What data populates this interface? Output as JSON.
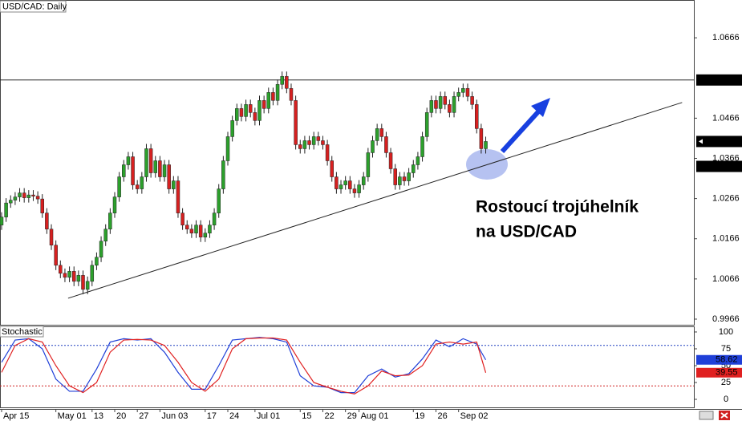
{
  "chart_data": {
    "type": "candlestick",
    "title": "USD/CAD: Daily",
    "up_color": "#2ca02c",
    "down_color": "#d62020",
    "open": [
      1.02,
      1.022,
      1.0255,
      1.0262,
      1.027,
      1.028,
      1.0268,
      1.0275,
      1.0272,
      1.0265,
      1.023,
      1.019,
      1.015,
      1.01,
      1.008,
      1.007,
      1.0085,
      1.006,
      1.0075,
      1.004,
      1.006,
      1.01,
      1.012,
      1.016,
      1.019,
      1.023,
      1.027,
      1.032,
      1.035,
      1.037,
      1.03,
      1.029,
      1.032,
      1.039,
      1.033,
      1.036,
      1.032,
      1.035,
      1.029,
      1.031,
      1.023,
      1.02,
      1.019,
      1.018,
      1.02,
      1.017,
      1.018,
      1.02,
      1.023,
      1.029,
      1.036,
      1.042,
      1.046,
      1.049,
      1.047,
      1.05,
      1.048,
      1.046,
      1.051,
      1.049,
      1.053,
      1.051,
      1.055,
      1.057,
      1.054,
      1.051,
      1.04,
      1.039,
      1.041,
      1.04,
      1.042,
      1.041,
      1.04,
      1.036,
      1.032,
      1.029,
      1.03,
      1.031,
      1.029,
      1.028,
      1.03,
      1.032,
      1.038,
      1.041,
      1.044,
      1.042,
      1.038,
      1.034,
      1.03,
      1.032,
      1.031,
      1.033,
      1.035,
      1.037,
      1.042,
      1.048,
      1.051,
      1.049,
      1.052,
      1.05,
      1.048,
      1.052,
      1.053,
      1.054,
      1.052,
      1.05,
      1.044,
      1.039
    ],
    "high": [
      1.0232,
      1.0267,
      1.0274,
      1.0282,
      1.0292,
      1.0292,
      1.0287,
      1.0287,
      1.0284,
      1.0277,
      1.0242,
      1.0202,
      1.0162,
      1.0112,
      1.0092,
      1.0097,
      1.0097,
      1.0087,
      1.0087,
      1.0072,
      1.0112,
      1.0132,
      1.0172,
      1.0202,
      1.0242,
      1.0282,
      1.0332,
      1.0362,
      1.0382,
      1.0382,
      1.0312,
      1.0332,
      1.0402,
      1.0402,
      1.0372,
      1.0372,
      1.0362,
      1.0362,
      1.0322,
      1.0322,
      1.0242,
      1.0212,
      1.0202,
      1.0212,
      1.0212,
      1.0192,
      1.0212,
      1.0242,
      1.0302,
      1.0372,
      1.0432,
      1.0472,
      1.0502,
      1.0502,
      1.0512,
      1.0512,
      1.0492,
      1.0522,
      1.0522,
      1.0542,
      1.0542,
      1.0562,
      1.0582,
      1.0582,
      1.0552,
      1.0522,
      1.0412,
      1.0422,
      1.0422,
      1.0432,
      1.0432,
      1.0422,
      1.0412,
      1.0372,
      1.0332,
      1.0312,
      1.0322,
      1.0322,
      1.0302,
      1.0312,
      1.0332,
      1.0392,
      1.0422,
      1.0452,
      1.0452,
      1.0432,
      1.0392,
      1.0352,
      1.0332,
      1.0332,
      1.0342,
      1.0362,
      1.0382,
      1.0432,
      1.0492,
      1.0522,
      1.0522,
      1.0532,
      1.0532,
      1.0512,
      1.0532,
      1.0542,
      1.0552,
      1.0552,
      1.0532,
      1.0512,
      1.0452,
      1.042
    ],
    "low": [
      1.0188,
      1.0208,
      1.0243,
      1.025,
      1.0258,
      1.0256,
      1.0256,
      1.026,
      1.0253,
      1.0218,
      1.0178,
      1.0138,
      1.0088,
      1.0068,
      1.0058,
      1.0058,
      1.0048,
      1.0048,
      1.0028,
      1.0028,
      1.0048,
      1.0088,
      1.0108,
      1.0148,
      1.0178,
      1.0218,
      1.0258,
      1.0308,
      1.0338,
      1.0288,
      1.0278,
      1.0278,
      1.0308,
      1.0318,
      1.0318,
      1.0308,
      1.0308,
      1.0278,
      1.0278,
      1.0218,
      1.0188,
      1.0178,
      1.0168,
      1.0168,
      1.0158,
      1.0158,
      1.0168,
      1.0188,
      1.0218,
      1.0278,
      1.0348,
      1.0408,
      1.0448,
      1.0458,
      1.0458,
      1.0468,
      1.0448,
      1.0448,
      1.0478,
      1.0478,
      1.0498,
      1.0498,
      1.0538,
      1.0528,
      1.0498,
      1.0388,
      1.0378,
      1.0378,
      1.0388,
      1.0388,
      1.0398,
      1.0388,
      1.0348,
      1.0308,
      1.0278,
      1.0278,
      1.0288,
      1.0278,
      1.0268,
      1.0268,
      1.0288,
      1.0308,
      1.0368,
      1.0398,
      1.0408,
      1.0368,
      1.0328,
      1.0288,
      1.0288,
      1.0298,
      1.0298,
      1.0318,
      1.0338,
      1.0358,
      1.0408,
      1.0468,
      1.0478,
      1.0478,
      1.0488,
      1.0468,
      1.0468,
      1.0508,
      1.0518,
      1.0508,
      1.0488,
      1.0428,
      1.0378,
      1.0378
    ],
    "close": [
      1.022,
      1.0255,
      1.0262,
      1.027,
      1.028,
      1.0268,
      1.0275,
      1.0272,
      1.0265,
      1.023,
      1.019,
      1.015,
      1.01,
      1.008,
      1.007,
      1.0085,
      1.006,
      1.0075,
      1.004,
      1.006,
      1.01,
      1.012,
      1.016,
      1.019,
      1.023,
      1.027,
      1.032,
      1.035,
      1.037,
      1.03,
      1.029,
      1.032,
      1.039,
      1.033,
      1.036,
      1.032,
      1.035,
      1.029,
      1.031,
      1.023,
      1.02,
      1.019,
      1.018,
      1.02,
      1.017,
      1.018,
      1.02,
      1.023,
      1.029,
      1.036,
      1.042,
      1.046,
      1.049,
      1.047,
      1.05,
      1.048,
      1.046,
      1.051,
      1.049,
      1.053,
      1.051,
      1.055,
      1.057,
      1.054,
      1.051,
      1.04,
      1.039,
      1.041,
      1.04,
      1.042,
      1.041,
      1.04,
      1.036,
      1.032,
      1.029,
      1.03,
      1.031,
      1.029,
      1.028,
      1.03,
      1.032,
      1.038,
      1.041,
      1.044,
      1.042,
      1.038,
      1.034,
      1.03,
      1.032,
      1.031,
      1.033,
      1.035,
      1.037,
      1.042,
      1.048,
      1.051,
      1.049,
      1.052,
      1.05,
      1.048,
      1.052,
      1.053,
      1.054,
      1.052,
      1.05,
      1.044,
      1.039,
      1.0408
    ],
    "xlim": [
      -0.35,
      153
    ],
    "ylim": [
      0.9952,
      1.076
    ],
    "yticks": [
      0.9966,
      1.0066,
      1.0166,
      1.0266,
      1.0366,
      1.0466,
      1.0666
    ],
    "xticks": [
      {
        "value": 0,
        "label": "Apr 15"
      },
      {
        "value": 12,
        "label": "May 01"
      },
      {
        "value": 20,
        "label": "13"
      },
      {
        "value": 25,
        "label": "20"
      },
      {
        "value": 30,
        "label": "27"
      },
      {
        "value": 35,
        "label": "Jun 03"
      },
      {
        "value": 45,
        "label": "17"
      },
      {
        "value": 50,
        "label": "24"
      },
      {
        "value": 56,
        "label": "Jul 01"
      },
      {
        "value": 66,
        "label": "15"
      },
      {
        "value": 71,
        "label": "22"
      },
      {
        "value": 76,
        "label": "29"
      },
      {
        "value": 79,
        "label": "Aug 01"
      },
      {
        "value": 91,
        "label": "19"
      },
      {
        "value": 96,
        "label": "26"
      },
      {
        "value": 101,
        "label": "Sep 02"
      }
    ],
    "resistance": 1.0561,
    "last_price": 1.0408,
    "marker_price": 1.0346,
    "trendline": {
      "x": [
        14.7,
        150.4
      ],
      "y": [
        1.0018,
        1.0505
      ]
    },
    "annotation": [
      "Rostoucí trojúhelník",
      "na USD/CAD"
    ],
    "indicator": {
      "title": "Stochastic",
      "ylim": [
        -11.9,
        108.3
      ],
      "yticks": [
        0,
        25,
        50,
        75,
        100
      ],
      "levels": [
        {
          "value": 80,
          "color": "#2040c0"
        },
        {
          "value": 20,
          "color": "#d02020"
        }
      ],
      "x": [
        0,
        3,
        6,
        9,
        12,
        15,
        18,
        21,
        24,
        27,
        30,
        33,
        36,
        39,
        42,
        45,
        48,
        51,
        54,
        57,
        60,
        63,
        66,
        69,
        72,
        75,
        78,
        81,
        84,
        87,
        90,
        93,
        96,
        99,
        102,
        105,
        107
      ],
      "series": [
        {
          "color": "#1f3fd8",
          "values": [
            55,
            88,
            90,
            75,
            30,
            12,
            12,
            45,
            85,
            90,
            88,
            90,
            70,
            40,
            15,
            15,
            50,
            88,
            90,
            92,
            90,
            85,
            35,
            20,
            18,
            10,
            10,
            35,
            45,
            33,
            38,
            60,
            88,
            78,
            90,
            82,
            58.62
          ]
        },
        {
          "color": "#e02020",
          "values": [
            40,
            80,
            90,
            85,
            50,
            20,
            10,
            25,
            70,
            88,
            89,
            88,
            80,
            55,
            25,
            12,
            30,
            75,
            90,
            91,
            91,
            88,
            55,
            25,
            18,
            12,
            8,
            20,
            42,
            35,
            36,
            50,
            82,
            85,
            82,
            85,
            39.55
          ]
        }
      ]
    }
  }
}
